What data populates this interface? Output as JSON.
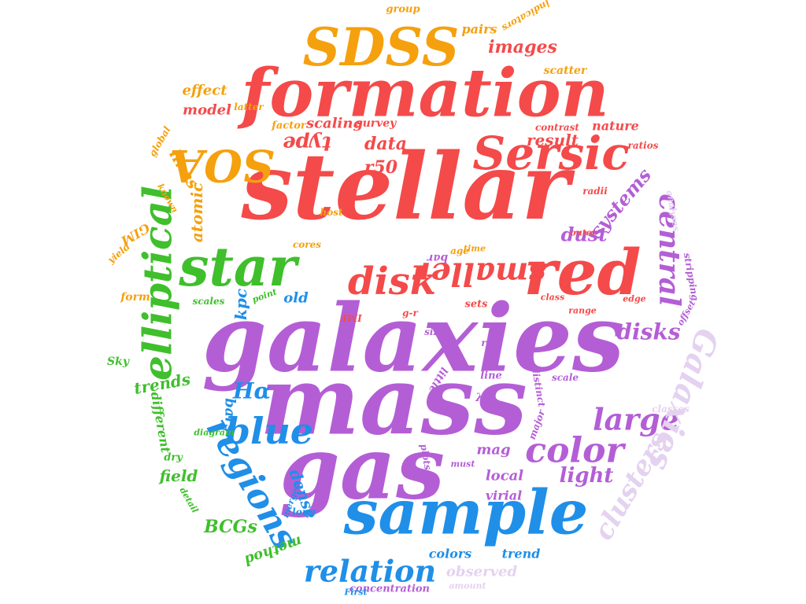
{
  "words": [
    {
      "id": "galaxies",
      "text": "galaxies",
      "color": "purple"
    },
    {
      "id": "mass",
      "text": "mass",
      "color": "purple"
    },
    {
      "id": "stellar",
      "text": "stellar",
      "color": "red"
    },
    {
      "id": "formation",
      "text": "formation",
      "color": "red"
    },
    {
      "id": "gas",
      "text": "gas",
      "color": "purple"
    },
    {
      "id": "sample",
      "text": "sample",
      "color": "blue"
    },
    {
      "id": "red",
      "text": "red",
      "color": "red"
    },
    {
      "id": "star",
      "text": "star",
      "color": "green"
    },
    {
      "id": "SDSS",
      "text": "SDSS",
      "color": "orange"
    },
    {
      "id": "Sersic",
      "text": "Sersic",
      "color": "red"
    },
    {
      "id": "elliptical",
      "text": "elliptical",
      "color": "green"
    },
    {
      "id": "SOA",
      "text": "SOA",
      "color": "orange"
    },
    {
      "id": "disk",
      "text": "disk",
      "color": "red"
    },
    {
      "id": "smaller",
      "text": "smaller",
      "color": "red"
    },
    {
      "id": "blue",
      "text": "blue",
      "color": "blue"
    },
    {
      "id": "regions",
      "text": "regions",
      "color": "blue"
    },
    {
      "id": "color",
      "text": "color",
      "color": "purple"
    },
    {
      "id": "large",
      "text": "large",
      "color": "purple"
    },
    {
      "id": "relation",
      "text": "relation",
      "color": "blue"
    },
    {
      "id": "central",
      "text": "central",
      "color": "purple"
    },
    {
      "id": "Galaxies2",
      "text": "Galaxies",
      "color": "lilac"
    },
    {
      "id": "clusters",
      "text": "clusters",
      "color": "lilac"
    },
    {
      "id": "disks",
      "text": "disks",
      "color": "purple"
    },
    {
      "id": "dust",
      "text": "dust",
      "color": "purple"
    },
    {
      "id": "light",
      "text": "light",
      "color": "purple"
    },
    {
      "id": "systems",
      "text": "systems",
      "color": "purple"
    },
    {
      "id": "images",
      "text": "images",
      "color": "red"
    },
    {
      "id": "data",
      "text": "data",
      "color": "red"
    },
    {
      "id": "type",
      "text": "type",
      "color": "red"
    },
    {
      "id": "r50",
      "text": "r50",
      "color": "red"
    },
    {
      "id": "result",
      "text": "result",
      "color": "red"
    },
    {
      "id": "nature",
      "text": "nature",
      "color": "red"
    },
    {
      "id": "scaling",
      "text": "scaling",
      "color": "red"
    },
    {
      "id": "survey",
      "text": "survey",
      "color": "red"
    },
    {
      "id": "model",
      "text": "model",
      "color": "red"
    },
    {
      "id": "effect",
      "text": "effect",
      "color": "orange"
    },
    {
      "id": "lines",
      "text": "lines",
      "color": "orange"
    },
    {
      "id": "atomic",
      "text": "atomic",
      "color": "orange"
    },
    {
      "id": "trends",
      "text": "trends",
      "color": "green"
    },
    {
      "id": "H-alpha",
      "text": "Hα",
      "color": "blue"
    },
    {
      "id": "kpc",
      "text": "kpc",
      "color": "blue"
    },
    {
      "id": "old",
      "text": "old",
      "color": "blue"
    },
    {
      "id": "bars",
      "text": "bars",
      "color": "blue"
    },
    {
      "id": "dense",
      "text": "dense",
      "color": "blue"
    },
    {
      "id": "BCGs",
      "text": "BCGs",
      "color": "green"
    },
    {
      "id": "field",
      "text": "field",
      "color": "green"
    },
    {
      "id": "different",
      "text": "different",
      "color": "green"
    },
    {
      "id": "mag",
      "text": "mag",
      "color": "purple"
    },
    {
      "id": "local",
      "text": "local",
      "color": "purple"
    },
    {
      "id": "virial",
      "text": "virial",
      "color": "purple"
    },
    {
      "id": "colors",
      "text": "colors",
      "color": "blue"
    },
    {
      "id": "trend",
      "text": "trend",
      "color": "blue"
    },
    {
      "id": "observed",
      "text": "observed",
      "color": "lilac"
    },
    {
      "id": "method",
      "text": "method",
      "color": "green"
    },
    {
      "id": "group",
      "text": "group",
      "color": "orange"
    },
    {
      "id": "pairs",
      "text": "pairs",
      "color": "orange"
    },
    {
      "id": "scatter",
      "text": "scatter",
      "color": "orange"
    },
    {
      "id": "indicators",
      "text": "indicators",
      "color": "orange"
    },
    {
      "id": "global",
      "text": "global",
      "color": "orange"
    },
    {
      "id": "factor",
      "text": "factor",
      "color": "orange"
    },
    {
      "id": "known",
      "text": "known",
      "color": "orange"
    },
    {
      "id": "yield",
      "text": "yield",
      "color": "orange"
    },
    {
      "id": "form",
      "text": "form",
      "color": "orange"
    },
    {
      "id": "GIM",
      "text": "GIM",
      "color": "orange"
    },
    {
      "id": "cores",
      "text": "cores",
      "color": "orange"
    },
    {
      "id": "host",
      "text": "host",
      "color": "orange"
    },
    {
      "id": "age",
      "text": "age",
      "color": "orange"
    },
    {
      "id": "time",
      "text": "time",
      "color": "orange"
    },
    {
      "id": "ratios",
      "text": "ratios",
      "color": "red"
    },
    {
      "id": "contrast",
      "text": "contrast",
      "color": "red"
    },
    {
      "id": "radii",
      "text": "radii",
      "color": "red"
    },
    {
      "id": "outer",
      "text": "outer",
      "color": "red"
    },
    {
      "id": "bar",
      "text": "bar",
      "color": "purple"
    },
    {
      "id": "sets",
      "text": "sets",
      "color": "red"
    },
    {
      "id": "g-r",
      "text": "g-r",
      "color": "red"
    },
    {
      "id": "IMF",
      "text": "IMF",
      "color": "red"
    },
    {
      "id": "class",
      "text": "class",
      "color": "red"
    },
    {
      "id": "edge",
      "text": "edge",
      "color": "red"
    },
    {
      "id": "offset",
      "text": "offset",
      "color": "purple"
    },
    {
      "id": "range",
      "text": "range",
      "color": "red"
    },
    {
      "id": "stripping",
      "text": "stripping",
      "color": "purple"
    },
    {
      "id": "analyses",
      "text": "analyses",
      "color": "lilac"
    },
    {
      "id": "size",
      "text": "size",
      "color": "purple"
    },
    {
      "id": "rate",
      "text": "rate",
      "color": "purple"
    },
    {
      "id": "little",
      "text": "little",
      "color": "purple"
    },
    {
      "id": "lambdaR",
      "text": "λR",
      "color": "purple"
    },
    {
      "id": "line",
      "text": "line",
      "color": "purple"
    },
    {
      "id": "distinct",
      "text": "distinct",
      "color": "purple"
    },
    {
      "id": "scale",
      "text": "scale",
      "color": "purple"
    },
    {
      "id": "major",
      "text": "major",
      "color": "purple"
    },
    {
      "id": "classes",
      "text": "classes",
      "color": "lilac"
    },
    {
      "id": "must",
      "text": "must",
      "color": "purple"
    },
    {
      "id": "plots",
      "text": "plots",
      "color": "purple"
    },
    {
      "id": "amount",
      "text": "amount",
      "color": "lilac"
    },
    {
      "id": "concentration",
      "text": "concentration",
      "color": "purple"
    },
    {
      "id": "First",
      "text": "First",
      "color": "blue"
    },
    {
      "id": "long",
      "text": "long",
      "color": "blue"
    },
    {
      "id": "merger",
      "text": "merger",
      "color": "blue"
    },
    {
      "id": "detail",
      "text": "detail",
      "color": "green"
    },
    {
      "id": "dry",
      "text": "dry",
      "color": "green"
    },
    {
      "id": "Sky",
      "text": "Sky",
      "color": "green"
    },
    {
      "id": "diagram",
      "text": "diagram",
      "color": "green"
    },
    {
      "id": "scales",
      "text": "scales",
      "color": "green"
    },
    {
      "id": "point",
      "text": "point",
      "color": "green"
    },
    {
      "id": "latter",
      "text": "latter",
      "color": "orange"
    }
  ]
}
